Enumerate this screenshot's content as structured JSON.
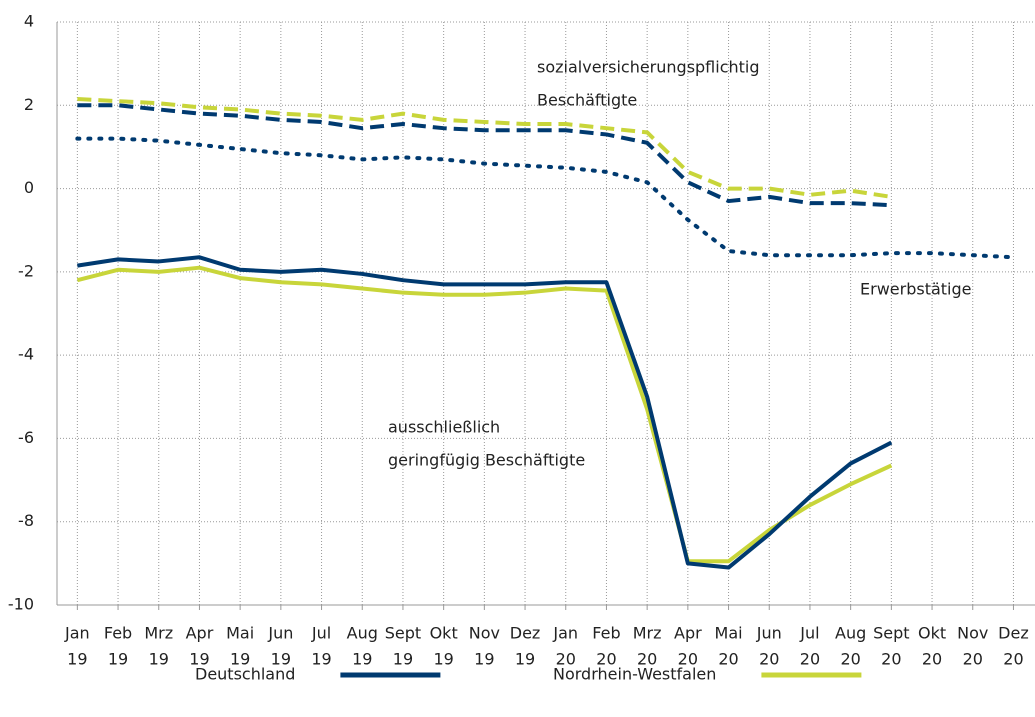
{
  "chart_data": {
    "type": "line",
    "categories": [
      [
        "Jan",
        "19"
      ],
      [
        "Feb",
        "19"
      ],
      [
        "Mrz",
        "19"
      ],
      [
        "Apr",
        "19"
      ],
      [
        "Mai",
        "19"
      ],
      [
        "Jun",
        "19"
      ],
      [
        "Jul",
        "19"
      ],
      [
        "Aug",
        "19"
      ],
      [
        "Sept",
        "19"
      ],
      [
        "Okt",
        "19"
      ],
      [
        "Nov",
        "19"
      ],
      [
        "Dez",
        "19"
      ],
      [
        "Jan",
        "20"
      ],
      [
        "Feb",
        "20"
      ],
      [
        "Mrz",
        "20"
      ],
      [
        "Apr",
        "20"
      ],
      [
        "Mai",
        "20"
      ],
      [
        "Jun",
        "20"
      ],
      [
        "Jul",
        "20"
      ],
      [
        "Aug",
        "20"
      ],
      [
        "Sept",
        "20"
      ],
      [
        "Okt",
        "20"
      ],
      [
        "Nov",
        "20"
      ],
      [
        "Dez",
        "20"
      ]
    ],
    "ylim": [
      -10,
      4
    ],
    "yticks": [
      -10,
      -8,
      -6,
      -4,
      -2,
      0,
      2,
      4
    ],
    "grid": true,
    "series": [
      {
        "name": "Deutschland",
        "color": "#003a70",
        "dash": "dashed",
        "values": [
          2.0,
          2.0,
          1.9,
          1.8,
          1.75,
          1.65,
          1.6,
          1.45,
          1.55,
          1.45,
          1.4,
          1.4,
          1.4,
          1.3,
          1.1,
          0.15,
          -0.3,
          -0.2,
          -0.35,
          -0.35,
          -0.4,
          null,
          null,
          null
        ]
      },
      {
        "name": "Nordrhein-Westfalen",
        "color": "#c8d53a",
        "dash": "dashed",
        "values": [
          2.15,
          2.1,
          2.05,
          1.95,
          1.9,
          1.8,
          1.75,
          1.65,
          1.8,
          1.65,
          1.6,
          1.55,
          1.55,
          1.45,
          1.35,
          0.4,
          0.0,
          0.0,
          -0.15,
          -0.05,
          -0.2,
          null,
          null,
          null
        ]
      },
      {
        "name": "Deutschland",
        "color": "#003a70",
        "dash": "dotted",
        "values": [
          1.2,
          1.2,
          1.15,
          1.05,
          0.95,
          0.85,
          0.8,
          0.7,
          0.75,
          0.7,
          0.6,
          0.55,
          0.5,
          0.4,
          0.15,
          -0.75,
          -1.5,
          -1.6,
          -1.6,
          -1.6,
          -1.55,
          -1.55,
          -1.6,
          -1.65
        ]
      },
      {
        "name": "Nordrhein-Westfalen",
        "color": "#c8d53a",
        "dash": "solid",
        "values": [
          -2.2,
          -1.95,
          -2.0,
          -1.9,
          -2.15,
          -2.25,
          -2.3,
          -2.4,
          -2.5,
          -2.55,
          -2.55,
          -2.5,
          -2.4,
          -2.45,
          -5.3,
          -8.95,
          -8.95,
          -8.2,
          -7.6,
          -7.1,
          -6.65,
          null,
          null,
          null
        ]
      },
      {
        "name": "Deutschland",
        "color": "#003a70",
        "dash": "solid",
        "values": [
          -1.85,
          -1.7,
          -1.75,
          -1.65,
          -1.95,
          -2.0,
          -1.95,
          -2.05,
          -2.2,
          -2.3,
          -2.3,
          -2.3,
          -2.25,
          -2.25,
          -5.0,
          -9.0,
          -9.1,
          -8.3,
          -7.4,
          -6.6,
          -6.1,
          null,
          null,
          null
        ]
      }
    ],
    "annotations": [
      [
        "sozialversicherungspflichtig",
        "Beschäftigte"
      ],
      [
        "Erwerbstätige"
      ],
      [
        "ausschließlich",
        "geringfügig Beschäftigte"
      ]
    ]
  }
}
